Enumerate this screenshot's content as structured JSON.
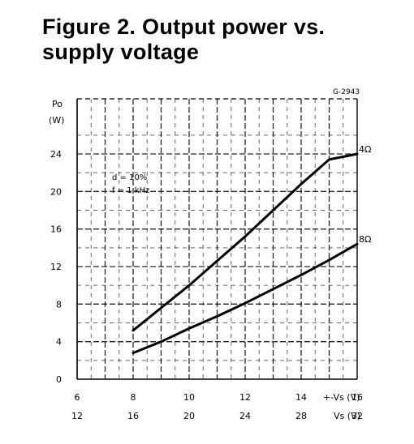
{
  "figure": {
    "title_line1": "Figure  2. Output  power  vs.",
    "title_line2": "supply voltage"
  },
  "chart_data": {
    "type": "line",
    "drawing_code": "G-2943",
    "ylabel_line1": "Po",
    "ylabel_line2": "(W)",
    "ylim": [
      0,
      24
    ],
    "yticks": [
      "0",
      "4",
      "8",
      "12",
      "16",
      "20",
      "24"
    ],
    "x_axis_primary": {
      "label": "+-Vs (V)",
      "ticks": [
        "6",
        "8",
        "10",
        "12",
        "14",
        "16"
      ],
      "range": [
        6,
        16
      ]
    },
    "x_axis_secondary": {
      "label": "Vs (V)",
      "ticks": [
        "12",
        "16",
        "20",
        "24",
        "28",
        "32"
      ],
      "range": [
        12,
        32
      ]
    },
    "conditions": [
      "d = 10%",
      "f = 1 kHz"
    ],
    "grid": true,
    "series": [
      {
        "name": "4Ω",
        "x": [
          8,
          9,
          10,
          11,
          12,
          13,
          14,
          15,
          16
        ],
        "values": [
          5.2,
          7.6,
          10.0,
          12.6,
          15.2,
          18.0,
          20.8,
          23.4,
          24.0
        ]
      },
      {
        "name": "8Ω",
        "x": [
          8,
          9,
          10,
          11,
          12,
          13,
          14,
          15,
          16
        ],
        "values": [
          2.8,
          4.0,
          5.4,
          6.7,
          8.1,
          9.6,
          11.1,
          12.7,
          14.4
        ]
      }
    ],
    "colors": {
      "line": "#000000",
      "grid": "#000000"
    }
  }
}
